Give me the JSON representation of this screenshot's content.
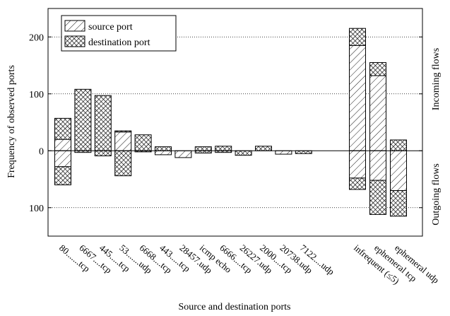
{
  "chart_data": {
    "type": "bar",
    "title": "",
    "xlabel": "Source and destination ports",
    "ylabel": "Frequency of observed ports",
    "side_labels": {
      "top": "Incoming flows",
      "bottom": "Outgoing flows"
    },
    "ylim": [
      -150,
      250
    ],
    "yticks": [
      {
        "value": 200,
        "label": "200"
      },
      {
        "value": 100,
        "label": "100"
      },
      {
        "value": 0,
        "label": "0"
      },
      {
        "value": -100,
        "label": "100"
      }
    ],
    "gridlines": [
      200,
      100,
      -100
    ],
    "legend": {
      "position": "top-left",
      "entries": [
        "source port",
        "destination port"
      ]
    },
    "categories": [
      "80.......tcp",
      "6667....tcp",
      "445.....tcp",
      "53.......udp",
      "6668....tcp",
      "443.....tcp",
      "28457.udp",
      "icmp echo",
      "6666....tcp",
      "26227.udp",
      "2000....tcp",
      "20738.udp",
      "7122....udp",
      "infrequent (≤5)",
      "ephemeral tcp",
      "ephemeral udp"
    ],
    "series": [
      {
        "name": "source port",
        "direction": "incoming",
        "values": [
          20,
          0,
          0,
          33,
          0,
          0,
          0,
          0,
          0,
          0,
          0,
          0,
          0,
          185,
          132,
          0
        ]
      },
      {
        "name": "destination port",
        "direction": "incoming",
        "values": [
          37,
          108,
          97,
          2,
          28,
          7,
          0,
          7,
          8,
          0,
          8,
          0,
          0,
          30,
          23,
          19
        ]
      },
      {
        "name": "source port",
        "direction": "outgoing",
        "values": [
          28,
          0,
          0,
          0,
          0,
          7,
          12,
          0,
          0,
          0,
          0,
          6,
          0,
          48,
          52,
          70
        ]
      },
      {
        "name": "destination port",
        "direction": "outgoing",
        "values": [
          32,
          3,
          9,
          44,
          2,
          0,
          0,
          4,
          3,
          8,
          0,
          0,
          5,
          20,
          60,
          45
        ]
      }
    ]
  }
}
